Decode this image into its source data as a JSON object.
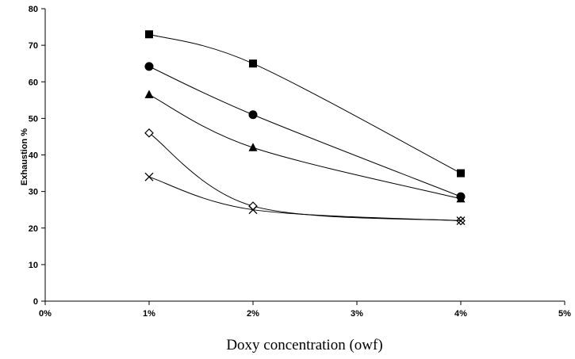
{
  "chart_data": {
    "type": "line",
    "title": "",
    "xlabel": "Doxy concentration (owf)",
    "ylabel": "Exhaustion %",
    "xlim": [
      0,
      5
    ],
    "ylim": [
      0,
      80
    ],
    "x_ticks": [
      "0%",
      "1%",
      "2%",
      "3%",
      "4%",
      "5%"
    ],
    "y_ticks": [
      "0",
      "10",
      "20",
      "30",
      "40",
      "50",
      "60",
      "70",
      "80"
    ],
    "x": [
      1,
      2,
      4
    ],
    "grid": false,
    "legend": "none",
    "line_style": "smooth",
    "series": [
      {
        "marker": "square",
        "values": [
          73,
          65,
          35
        ],
        "color": "#000000"
      },
      {
        "marker": "circle",
        "values": [
          64.2,
          51,
          28.6
        ],
        "color": "#000000"
      },
      {
        "marker": "triangle",
        "values": [
          56.5,
          42,
          28
        ],
        "color": "#000000"
      },
      {
        "marker": "diamond-open",
        "values": [
          46,
          26,
          22
        ],
        "color": "#000000"
      },
      {
        "marker": "x",
        "values": [
          34,
          25,
          22
        ],
        "color": "#000000"
      }
    ]
  }
}
